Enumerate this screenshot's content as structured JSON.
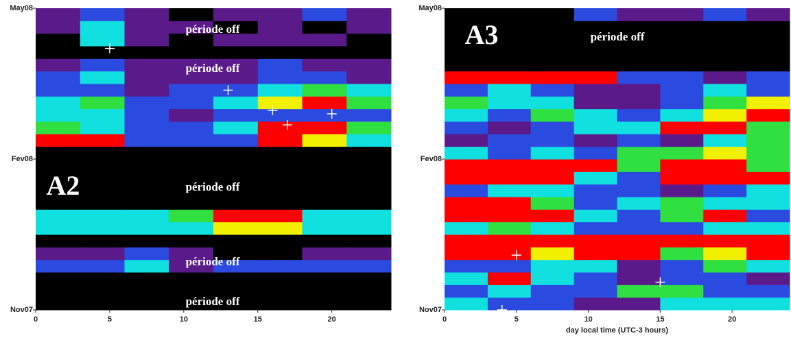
{
  "chart_data": [
    {
      "type": "heatmap",
      "panel_label": "A2",
      "annotations": [
        "période off",
        "période off",
        "période off",
        "période off",
        "période off"
      ],
      "xlim": [
        0,
        24
      ],
      "xticks": [
        0,
        5,
        10,
        15,
        20
      ],
      "ylim": [
        0,
        6
      ],
      "yticks": [
        {
          "value": 0,
          "label": "Nov07"
        },
        {
          "value": 3,
          "label": "Fev08"
        },
        {
          "value": 6,
          "label": "May08"
        }
      ],
      "colors": [
        "#000000",
        "#5a1a8a",
        "#2a4ae0",
        "#10e0e0",
        "#30e040",
        "#f0f000",
        "#ff0000"
      ],
      "z": [
        [
          0,
          0,
          0,
          0,
          0,
          0,
          0,
          0
        ],
        [
          0,
          0,
          0,
          0,
          0,
          0,
          0,
          0
        ],
        [
          0,
          0,
          0,
          0,
          0,
          0,
          0,
          0
        ],
        [
          2,
          2,
          3,
          1,
          2,
          2,
          2,
          2
        ],
        [
          1,
          1,
          2,
          1,
          0,
          0,
          1,
          1
        ],
        [
          0,
          0,
          0,
          0,
          0,
          0,
          0,
          0
        ],
        [
          3,
          3,
          3,
          3,
          5,
          5,
          3,
          3
        ],
        [
          3,
          3,
          3,
          4,
          6,
          6,
          3,
          3
        ],
        [
          0,
          0,
          0,
          0,
          0,
          0,
          0,
          0
        ],
        [
          0,
          0,
          0,
          0,
          0,
          0,
          0,
          0
        ],
        [
          0,
          0,
          0,
          0,
          0,
          0,
          0,
          0
        ],
        [
          0,
          0,
          0,
          0,
          0,
          0,
          0,
          0
        ],
        [
          0,
          0,
          0,
          0,
          0,
          0,
          0,
          0
        ],
        [
          6,
          6,
          2,
          2,
          2,
          6,
          5,
          3
        ],
        [
          4,
          3,
          2,
          2,
          3,
          6,
          6,
          4
        ],
        [
          3,
          3,
          2,
          1,
          2,
          2,
          2,
          2
        ],
        [
          3,
          4,
          2,
          2,
          3,
          5,
          6,
          4
        ],
        [
          2,
          2,
          1,
          2,
          2,
          3,
          4,
          3
        ],
        [
          2,
          3,
          1,
          1,
          1,
          2,
          2,
          1
        ],
        [
          1,
          2,
          1,
          1,
          1,
          2,
          1,
          1
        ],
        [
          0,
          0,
          0,
          0,
          0,
          0,
          0,
          0
        ],
        [
          0,
          3,
          1,
          0,
          1,
          1,
          1,
          0
        ],
        [
          1,
          3,
          1,
          1,
          0,
          1,
          0,
          1
        ],
        [
          1,
          2,
          1,
          0,
          1,
          1,
          2,
          1
        ]
      ],
      "markers": {
        "x": [
          5,
          13,
          16,
          20,
          17
        ],
        "y": [
          5.2,
          4.37,
          3.97,
          3.9,
          3.68
        ]
      }
    },
    {
      "type": "heatmap",
      "panel_label": "A3",
      "annotations": [
        "période off"
      ],
      "x_label": "day local time (UTC-3 hours)",
      "xlim": [
        0,
        24
      ],
      "xticks": [
        0,
        5,
        10,
        15,
        20
      ],
      "ylim": [
        0,
        6
      ],
      "yticks": [
        {
          "value": 0,
          "label": "Nov07"
        },
        {
          "value": 3,
          "label": "Fev08"
        },
        {
          "value": 6,
          "label": "May08"
        }
      ],
      "colors": [
        "#000000",
        "#5a1a8a",
        "#2a4ae0",
        "#10e0e0",
        "#30e040",
        "#f0f000",
        "#ff0000"
      ],
      "z": [
        [
          3,
          2,
          2,
          1,
          1,
          3,
          3,
          3
        ],
        [
          2,
          3,
          2,
          2,
          4,
          4,
          2,
          2
        ],
        [
          3,
          6,
          3,
          2,
          1,
          2,
          2,
          1
        ],
        [
          2,
          2,
          3,
          3,
          1,
          2,
          4,
          3
        ],
        [
          6,
          6,
          5,
          6,
          6,
          4,
          5,
          6
        ],
        [
          6,
          6,
          6,
          6,
          6,
          6,
          6,
          6
        ],
        [
          3,
          4,
          3,
          2,
          2,
          2,
          3,
          3
        ],
        [
          6,
          6,
          6,
          3,
          2,
          4,
          6,
          2
        ],
        [
          6,
          6,
          4,
          2,
          3,
          4,
          3,
          3
        ],
        [
          2,
          3,
          3,
          2,
          2,
          1,
          2,
          3
        ],
        [
          6,
          6,
          6,
          3,
          2,
          6,
          6,
          6
        ],
        [
          6,
          6,
          6,
          6,
          4,
          6,
          6,
          4
        ],
        [
          3,
          2,
          3,
          2,
          4,
          4,
          5,
          4
        ],
        [
          1,
          2,
          2,
          1,
          2,
          1,
          3,
          4
        ],
        [
          2,
          1,
          2,
          3,
          3,
          6,
          6,
          4
        ],
        [
          3,
          2,
          4,
          3,
          2,
          3,
          5,
          6
        ],
        [
          4,
          3,
          3,
          1,
          1,
          2,
          4,
          5
        ],
        [
          2,
          3,
          2,
          1,
          1,
          2,
          3,
          2
        ],
        [
          6,
          6,
          6,
          6,
          2,
          2,
          1,
          2
        ],
        [
          0,
          0,
          0,
          0,
          0,
          0,
          0,
          0
        ],
        [
          0,
          0,
          0,
          0,
          0,
          0,
          0,
          0
        ],
        [
          0,
          0,
          0,
          0,
          0,
          0,
          0,
          0
        ],
        [
          0,
          0,
          0,
          0,
          0,
          0,
          0,
          0
        ],
        [
          0,
          0,
          0,
          2,
          1,
          1,
          2,
          1
        ]
      ],
      "markers": {
        "x": [
          5,
          15,
          4
        ],
        "y": [
          1.09,
          0.55,
          0
        ]
      }
    }
  ]
}
